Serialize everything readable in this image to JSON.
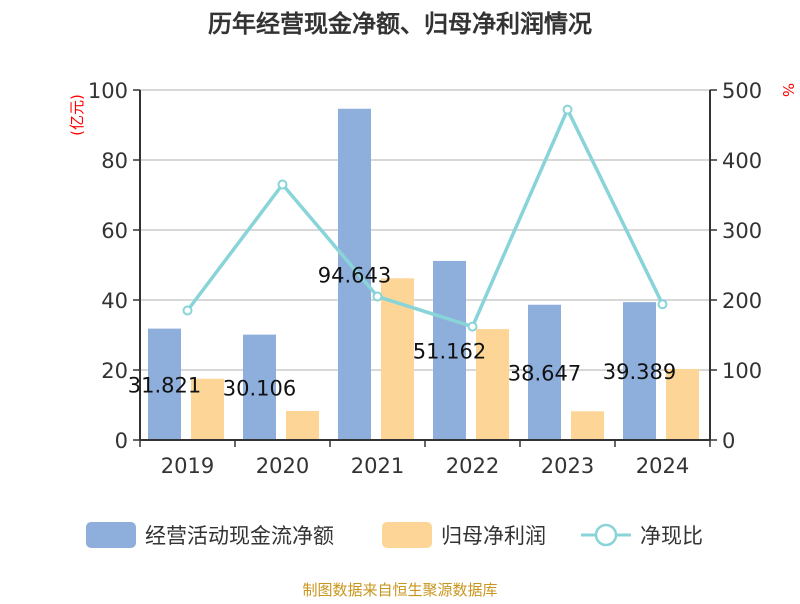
{
  "chart_data": {
    "type": "bar",
    "title": "历年经营现金净额、归母净利润情况",
    "ylabel": "(亿元)",
    "y2label": "%",
    "categories": [
      "2019",
      "2020",
      "2021",
      "2022",
      "2023",
      "2024"
    ],
    "ylim": [
      0,
      100
    ],
    "y2lim": [
      0,
      500
    ],
    "yticks": [
      "0",
      "20",
      "40",
      "60",
      "80",
      "100"
    ],
    "y2ticks": [
      "0",
      "100",
      "200",
      "300",
      "400",
      "500"
    ],
    "series": [
      {
        "name": "经营活动现金流净额",
        "type": "bar",
        "color": "#8eaedb",
        "values": [
          31.821,
          30.106,
          94.643,
          51.162,
          38.647,
          39.389
        ],
        "labels": [
          "31.821",
          "30.106",
          "94.643",
          "51.162",
          "38.647",
          "39.389"
        ]
      },
      {
        "name": "归母净利润",
        "type": "bar",
        "color": "#fdd697",
        "values": [
          17.5,
          8.3,
          46.2,
          31.7,
          8.2,
          20.3
        ]
      },
      {
        "name": "净现比",
        "type": "line",
        "axis": "right",
        "color": "#88d4d8",
        "values": [
          185,
          365,
          205,
          162,
          472,
          194
        ]
      }
    ],
    "source": "制图数据来自恒生聚源数据库"
  }
}
